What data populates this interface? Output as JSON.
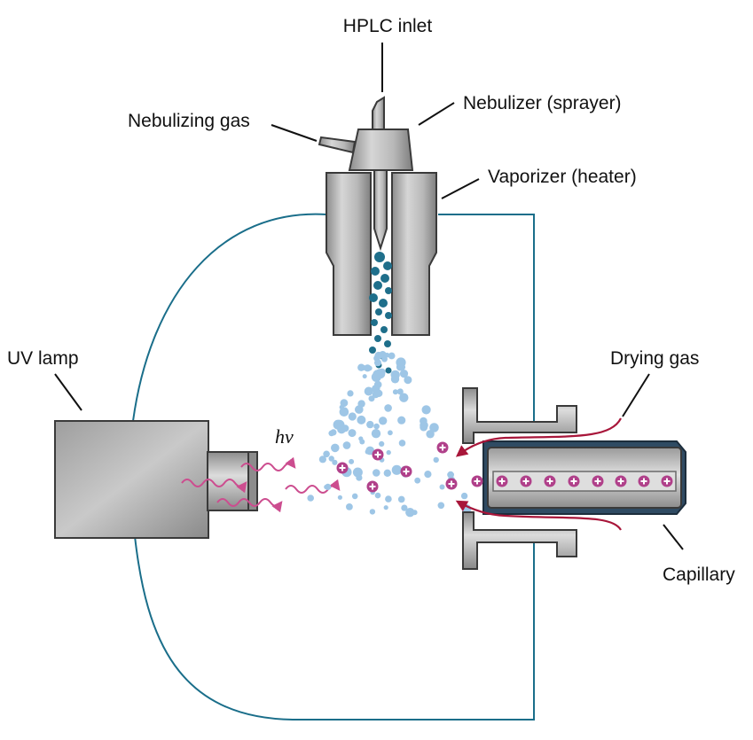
{
  "labels": {
    "hplc_inlet": "HPLC inlet",
    "nebulizer": "Nebulizer (sprayer)",
    "nebulizing_gas": "Nebulizing gas",
    "vaporizer": "Vaporizer (heater)",
    "uv_lamp": "UV lamp",
    "drying_gas": "Drying gas",
    "capillary": "Capillary",
    "hv": "hv"
  },
  "colors": {
    "metal_light": "#d9d9d9",
    "metal_mid": "#a6a6a6",
    "metal_dark": "#7a7a7a",
    "outline": "#3a3a3a",
    "circuit_wire": "#1a6e8a",
    "droplet_dark": "#1f6f8b",
    "droplet_light": "#9ec6e6",
    "ion_magenta": "#b0408a",
    "photon_pink": "#cc4d8f",
    "drying_gas_red": "#a8163a",
    "capillary_sleeve": "#2f4b63"
  },
  "icons": {
    "ion": "plus-circle-icon",
    "photon": "wavy-arrow-icon"
  }
}
